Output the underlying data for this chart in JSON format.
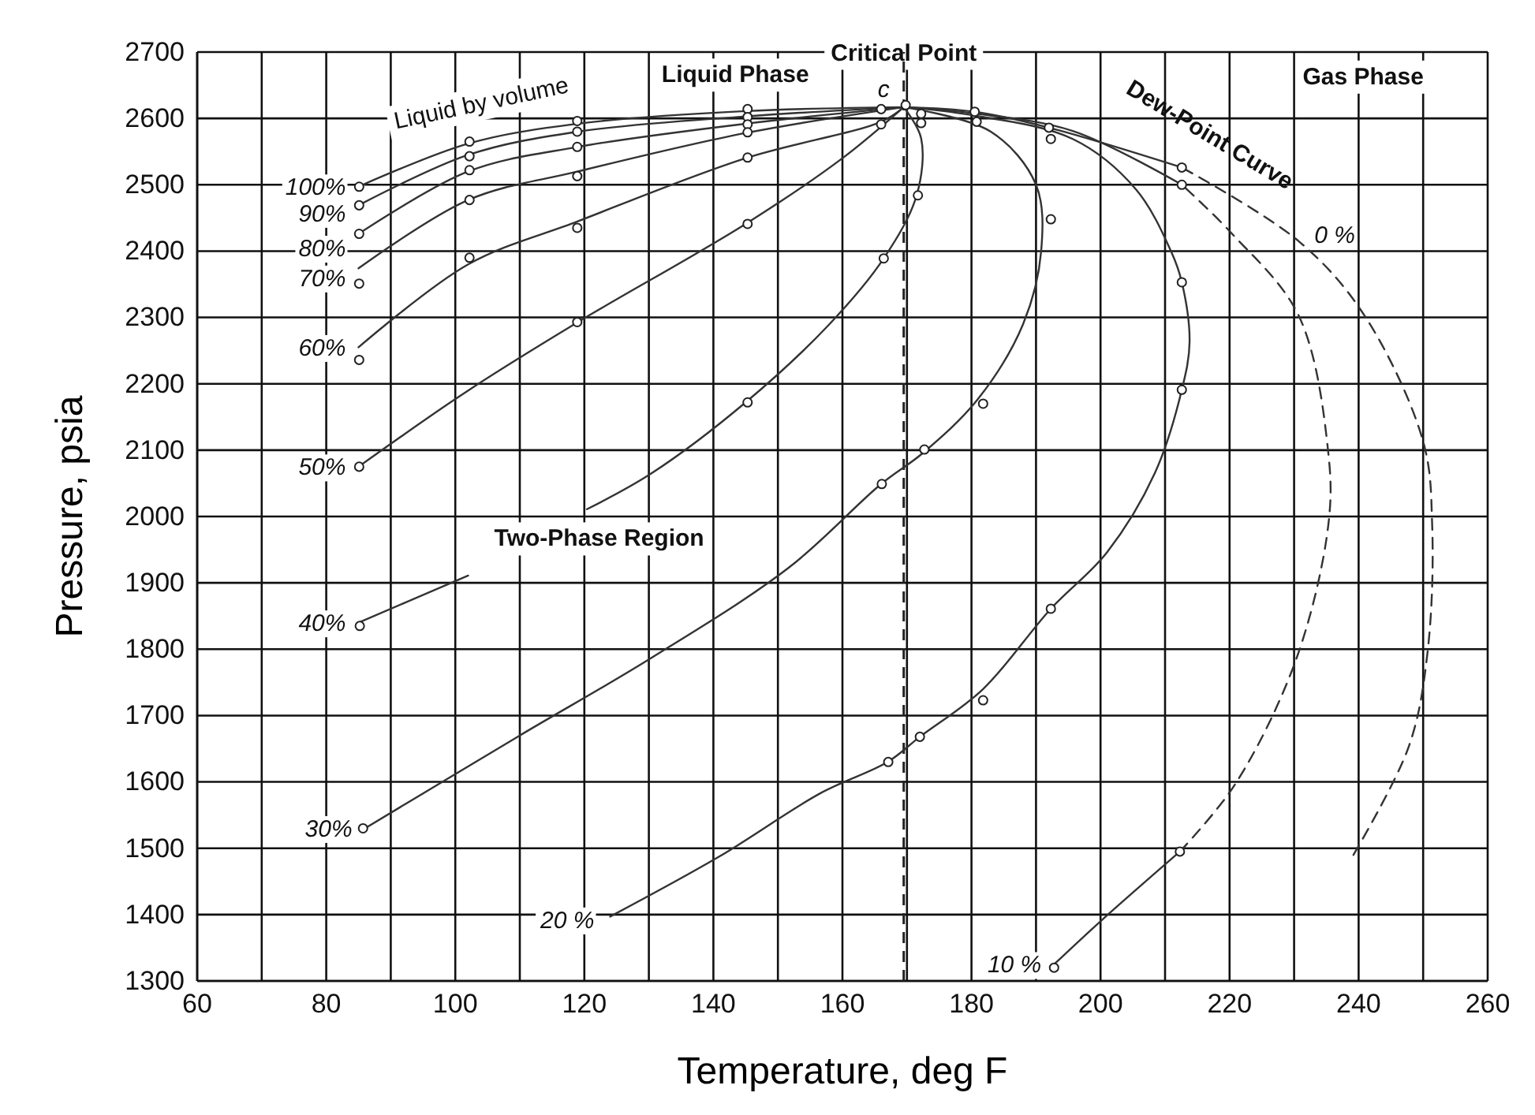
{
  "chart_data": {
    "type": "line",
    "xlabel": "Temperature, deg F",
    "ylabel": "Pressure, psia",
    "xlim": [
      60,
      260
    ],
    "ylim": [
      1300,
      2700
    ],
    "xticks": [
      60,
      {
        "value": 70,
        "label": null
      },
      80,
      {
        "value": 90,
        "label": null
      },
      100,
      {
        "value": 110,
        "label": null
      },
      120,
      {
        "value": 130,
        "label": null
      },
      140,
      {
        "value": 150,
        "label": null
      },
      160,
      {
        "value": 170,
        "label": null
      },
      180,
      {
        "value": 190,
        "label": null
      },
      200,
      {
        "value": 210,
        "label": null
      },
      220,
      {
        "value": 230,
        "label": null
      },
      240,
      {
        "value": 250,
        "label": null
      },
      260
    ],
    "yticks": [
      1300,
      1400,
      1500,
      1600,
      1700,
      1800,
      1900,
      2000,
      2100,
      2200,
      2300,
      2400,
      2500,
      2600,
      2700
    ],
    "grid": true,
    "marker": "none",
    "line_style": "solid",
    "color": "#333333",
    "ref_lines": [
      {
        "axis": "x",
        "value": 169.5,
        "label": null,
        "line_style": "dashed",
        "color": "#222222"
      }
    ],
    "series": [
      {
        "name": "100%",
        "x": [
          85,
          102,
          119,
          145,
          169.5
        ],
        "values": [
          2497,
          2562,
          2592,
          2611,
          2617
        ]
      },
      {
        "name": "90%",
        "x": [
          85,
          102,
          119,
          145,
          169.5
        ],
        "values": [
          2469,
          2545,
          2580,
          2603,
          2617
        ]
      },
      {
        "name": "80%",
        "x": [
          85,
          102,
          119,
          145,
          169.5
        ],
        "values": [
          2426,
          2520,
          2557,
          2592,
          2617
        ]
      },
      {
        "name": "70%",
        "x": [
          85,
          102,
          119,
          145,
          169.5
        ],
        "values": [
          2374,
          2477,
          2520,
          2578,
          2617
        ]
      },
      {
        "name": "60%",
        "x": [
          85,
          102,
          119,
          145,
          166,
          169.5
        ],
        "values": [
          2255,
          2380,
          2445,
          2540,
          2595,
          2617
        ]
      },
      {
        "name": "50%",
        "x": [
          85,
          102,
          119,
          145,
          160,
          169.5
        ],
        "values": [
          2075,
          2190,
          2293,
          2441,
          2540,
          2617
        ]
      },
      {
        "name": "40%",
        "x": [
          85,
          102,
          111,
          120.4,
          130.4,
          145,
          158,
          166.4,
          171.5,
          172.2,
          169.5
        ],
        "values": [
          1840,
          1911,
          null,
          2011,
          2065,
          2172,
          2290,
          2389,
          2484,
          2570,
          2617
        ]
      },
      {
        "name": "30%",
        "x": [
          86,
          110,
          130.4,
          151.7,
          166,
          172.5,
          181,
          188,
          190.8,
          190,
          183,
          169.5
        ],
        "values": [
          1530,
          1670,
          1787,
          1923,
          2049,
          2096,
          2177,
          2290,
          2400,
          2500,
          2580,
          2617
        ]
      },
      {
        "name": "20 %",
        "x": [
          124,
          141,
          156.6,
          167,
          172,
          181.8,
          192.3,
          201,
          208.4,
          212.6,
          213.8,
          212.6,
          211,
          205.5,
          195.7,
          180,
          169.5
        ],
        "values": [
          1397,
          1488,
          1583,
          1630,
          1668,
          1740,
          1861,
          1946,
          2065,
          2191,
          2263,
          2353,
          2398,
          2493,
          2569,
          2605,
          2617
        ]
      },
      {
        "name": "10 %",
        "x": [
          192.8,
          200,
          212.3
        ],
        "values": [
          1325,
          1390,
          1495
        ]
      },
      {
        "line_style": "dashed",
        "x": [
          212.3,
          220.9,
          230.4,
          235.3,
          235.3,
          230.7,
          220.1,
          212.6
        ],
        "values": [
          1495,
          1597,
          1787,
          1987,
          2096,
          2303,
          2429,
          2500
        ]
      },
      {
        "x": [
          212.6,
          195.7,
          180,
          169.5
        ],
        "values": [
          2500,
          2581,
          2608,
          2617
        ]
      },
      {
        "name": "0 %",
        "line_style": "dashed",
        "x": [
          239.2,
          247.8,
          250.7,
          251.4,
          250,
          240.9,
          230.7,
          212.6
        ],
        "values": [
          1490,
          1654,
          1797,
          1987,
          2113,
          2303,
          2415,
          2526
        ]
      },
      {
        "x": [
          212.6,
          192,
          180.5,
          169.5
        ],
        "values": [
          2526,
          2586,
          2610,
          2617
        ]
      },
      {
        "type": "scatter",
        "marker": "circle",
        "color": "#ffffff",
        "x": [
          85.1,
          85.1,
          85.1,
          85.1,
          85.1,
          85.1,
          85.2,
          85.7,
          102.2,
          102.2,
          102.2,
          102.2,
          102.2,
          118.9,
          118.9,
          118.9,
          118.9,
          118.9,
          118.9,
          145.3,
          145.3,
          145.3,
          145.3,
          145.3,
          145.3,
          145.3,
          166,
          166,
          166.4,
          166.1,
          167.1,
          169.8,
          172.2,
          172.2,
          171.7,
          172.7,
          172,
          180.5,
          180.8,
          181.8,
          181.8,
          192,
          192.3,
          192.3,
          192.3,
          192.8,
          212.6,
          212.6,
          212.6,
          212.6,
          212.3
        ],
        "values": [
          2497,
          2469,
          2426,
          2351,
          2236,
          2075,
          1835,
          1530,
          2565,
          2543,
          2522,
          2477,
          2390,
          2596,
          2580,
          2557,
          2513,
          2435,
          2293,
          2614,
          2602,
          2591,
          2579,
          2541,
          2441,
          2172,
          2614,
          2591,
          2389,
          2049,
          1630,
          2620,
          2607,
          2593,
          2484,
          2101,
          1668,
          2610,
          2595,
          2170,
          1723,
          2586,
          2569,
          2448,
          1861,
          1320,
          2526,
          2500,
          2353,
          2191,
          1495
        ]
      }
    ],
    "annotations": [
      "Liquid Phase",
      "Critical Point",
      "c",
      "Gas Phase",
      "Dew-Point Curve",
      "Liquid by volume",
      "Two-Phase Region"
    ]
  }
}
